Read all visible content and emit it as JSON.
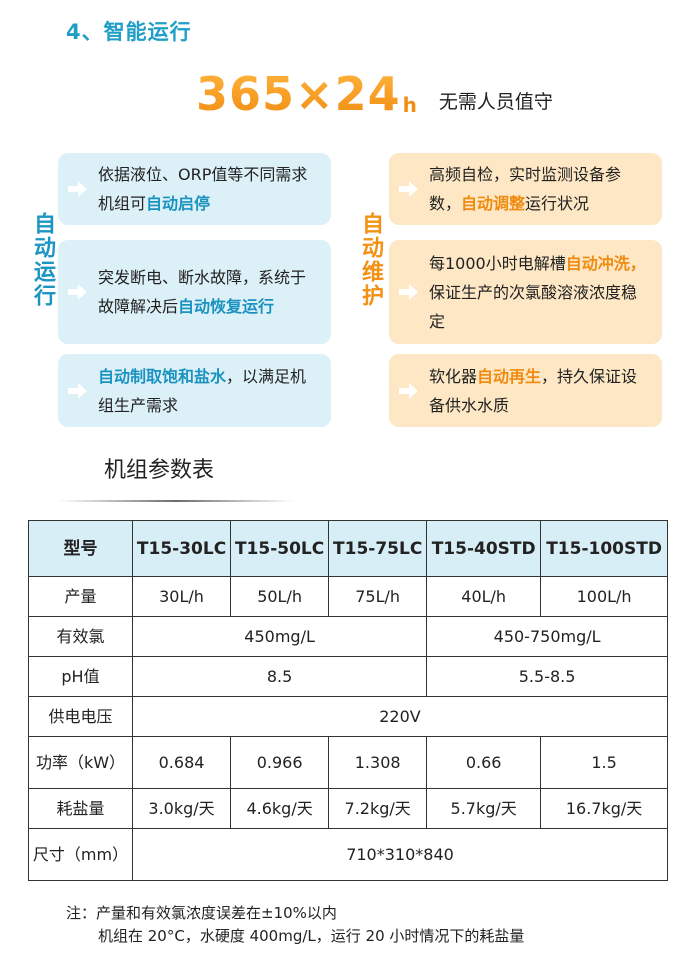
{
  "section_title": "4、智能运行",
  "hero": {
    "big": "365×24",
    "unit": "h",
    "slogan": "无需人员值守"
  },
  "left_label": "自动运行",
  "right_label": "自动维护",
  "left_cards": [
    {
      "pre": "依据液位、ORP值等不同需求机组可",
      "hl": "自动启停",
      "post": ""
    },
    {
      "pre": "突发断电、断水故障，系统于故障解决后",
      "hl": "自动恢复运行",
      "post": ""
    },
    {
      "pre": "",
      "hl": "自动制取饱和盐水",
      "post": "，以满足机组生产需求"
    }
  ],
  "right_cards": [
    {
      "pre": "高频自检，实时监测设备参数，",
      "hl": "自动调整",
      "post": "运行状况"
    },
    {
      "pre": "每1000小时电解槽",
      "hl": "自动冲洗，",
      "post": "保证生产的次氯酸溶液浓度稳定"
    },
    {
      "pre": "软化器",
      "hl": "自动再生",
      "post": "，持久保证设备供水水质"
    }
  ],
  "table_title": "机组参数表",
  "table": {
    "header": [
      "型号",
      "T15-30LC",
      "T15-50LC",
      "T15-75LC",
      "T15-40STD",
      "T15-100STD"
    ],
    "rows": {
      "output": {
        "label": "产量",
        "values": [
          "30L/h",
          "50L/h",
          "75L/h",
          "40L/h",
          "100L/h"
        ]
      },
      "chlorine": {
        "label": "有效氯",
        "group1": "450mg/L",
        "group2": "450-750mg/L"
      },
      "ph": {
        "label": "pH值",
        "group1": "8.5",
        "group2": "5.5-8.5"
      },
      "voltage": {
        "label": "供电电压",
        "value": "220V"
      },
      "power": {
        "label": "功率（kW）",
        "values": [
          "0.684",
          "0.966",
          "1.308",
          "0.66",
          "1.5"
        ]
      },
      "salt": {
        "label": "耗盐量",
        "values": [
          "3.0kg/天",
          "4.6kg/天",
          "7.2kg/天",
          "5.7kg/天",
          "16.7kg/天"
        ]
      },
      "size": {
        "label": "尺寸（mm）",
        "value": "710*310*840"
      }
    }
  },
  "note": {
    "line1": "注：产量和有效氯浓度误差在±10%以内",
    "line2": "机组在 20°C，水硬度 400mg/L，运行 20 小时情况下的耗盐量"
  },
  "colors": {
    "blue": "#1c95c2",
    "orange": "#f29113",
    "blue_card": "#dcf0f7",
    "orange_card": "#fde7c4",
    "table_header": "#d8eef6"
  }
}
